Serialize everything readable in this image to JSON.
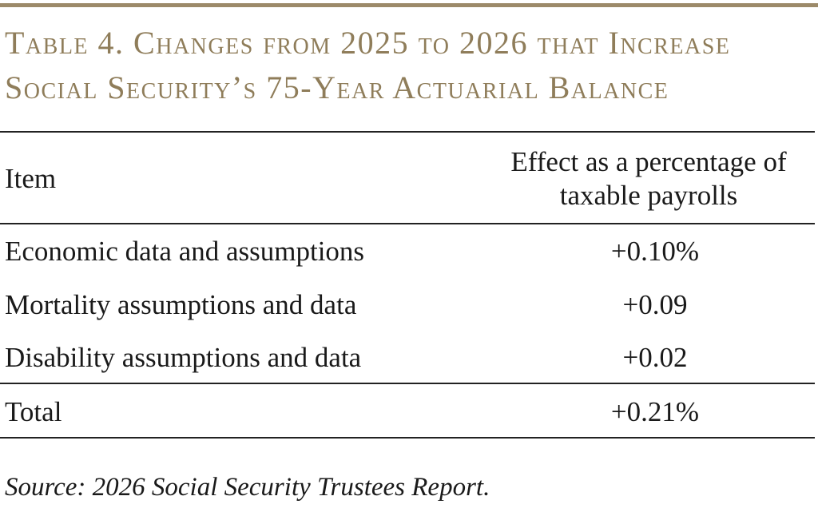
{
  "title": {
    "line1": "Table 4. Changes from 2025 to 2026 that Increase",
    "line2": "Social Security’s 75-Year Actuarial Balance"
  },
  "table": {
    "headers": {
      "item": "Item",
      "effect_line1": "Effect as a percentage of",
      "effect_line2": "taxable payrolls"
    },
    "rows": [
      {
        "item": "Economic data and assumptions",
        "effect": "+0.10%"
      },
      {
        "item": "Mortality assumptions and data",
        "effect": "+0.09"
      },
      {
        "item": "Disability assumptions and data",
        "effect": "+0.02"
      }
    ],
    "total": {
      "item": "Total",
      "effect": "+0.21%"
    }
  },
  "source": "Source: 2026 Social Security Trustees Report."
}
